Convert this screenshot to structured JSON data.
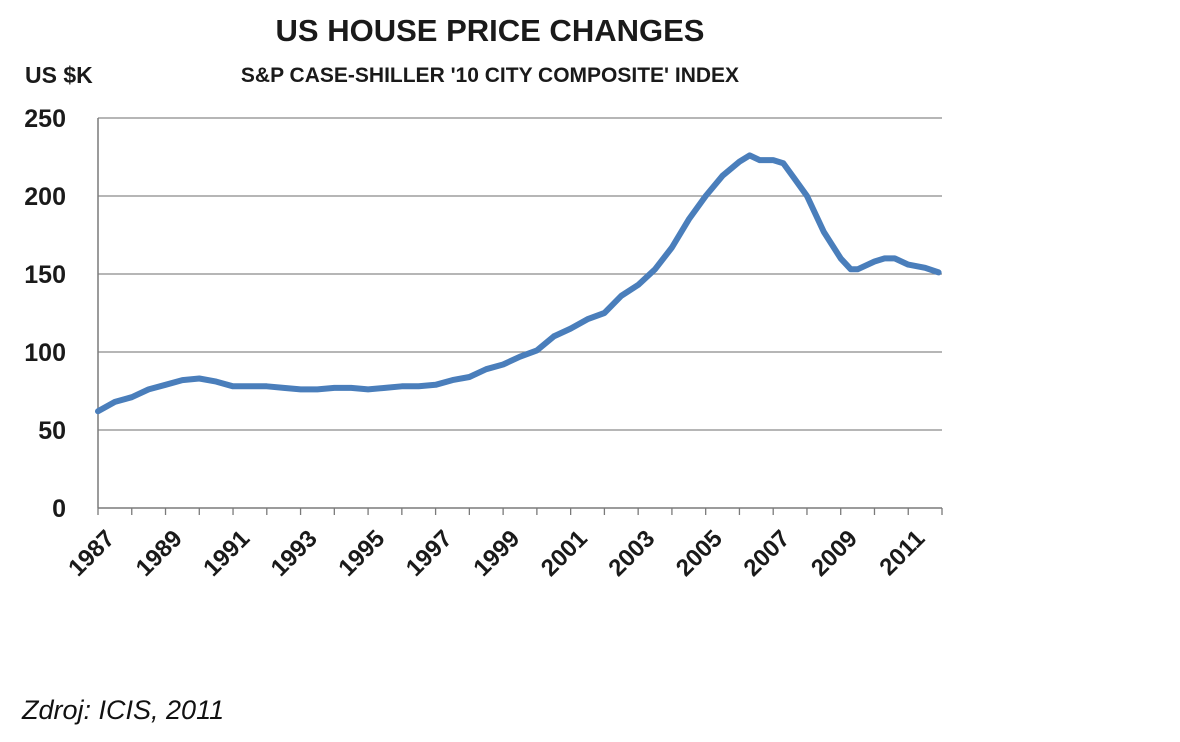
{
  "chart_data": {
    "type": "line",
    "title": "US HOUSE PRICE CHANGES",
    "subtitle": "S&P CASE-SHILLER '10 CITY COMPOSITE' INDEX",
    "ylabel": "US $K",
    "xlabel": "",
    "xlim": [
      1987,
      2012
    ],
    "ylim": [
      0,
      250
    ],
    "y_ticks": [
      0,
      50,
      100,
      150,
      200,
      250
    ],
    "x_tick_labels": [
      "1987",
      "1989",
      "1991",
      "1993",
      "1995",
      "1997",
      "1999",
      "2001",
      "2003",
      "2005",
      "2007",
      "2009",
      "2011"
    ],
    "grid": "horizontal",
    "line_color": "#4a7ebb",
    "series": [
      {
        "x": [
          1987.0,
          1987.5,
          1988.0,
          1988.5,
          1989.0,
          1989.5,
          1990.0,
          1990.5,
          1991.0,
          1991.5,
          1992.0,
          1992.5,
          1993.0,
          1993.5,
          1994.0,
          1994.5,
          1995.0,
          1995.5,
          1996.0,
          1996.5,
          1997.0,
          1997.5,
          1998.0,
          1998.5,
          1999.0,
          1999.5,
          2000.0,
          2000.5,
          2001.0,
          2001.5,
          2002.0,
          2002.5,
          2003.0,
          2003.5,
          2004.0,
          2004.5,
          2005.0,
          2005.5,
          2006.0,
          2006.3,
          2006.6,
          2007.0,
          2007.3,
          2007.6,
          2008.0,
          2008.5,
          2009.0,
          2009.3,
          2009.5,
          2010.0,
          2010.3,
          2010.6,
          2011.0,
          2011.5,
          2011.9
        ],
        "values": [
          62,
          68,
          71,
          76,
          79,
          82,
          83,
          81,
          78,
          78,
          78,
          77,
          76,
          76,
          77,
          77,
          76,
          77,
          78,
          78,
          79,
          82,
          84,
          89,
          92,
          97,
          101,
          110,
          115,
          121,
          125,
          136,
          143,
          153,
          167,
          185,
          200,
          213,
          222,
          226,
          223,
          223,
          221,
          212,
          200,
          177,
          160,
          153,
          153,
          158,
          160,
          160,
          156,
          154,
          151
        ]
      }
    ]
  },
  "source_note": "Zdroj: ICIS, 2011"
}
